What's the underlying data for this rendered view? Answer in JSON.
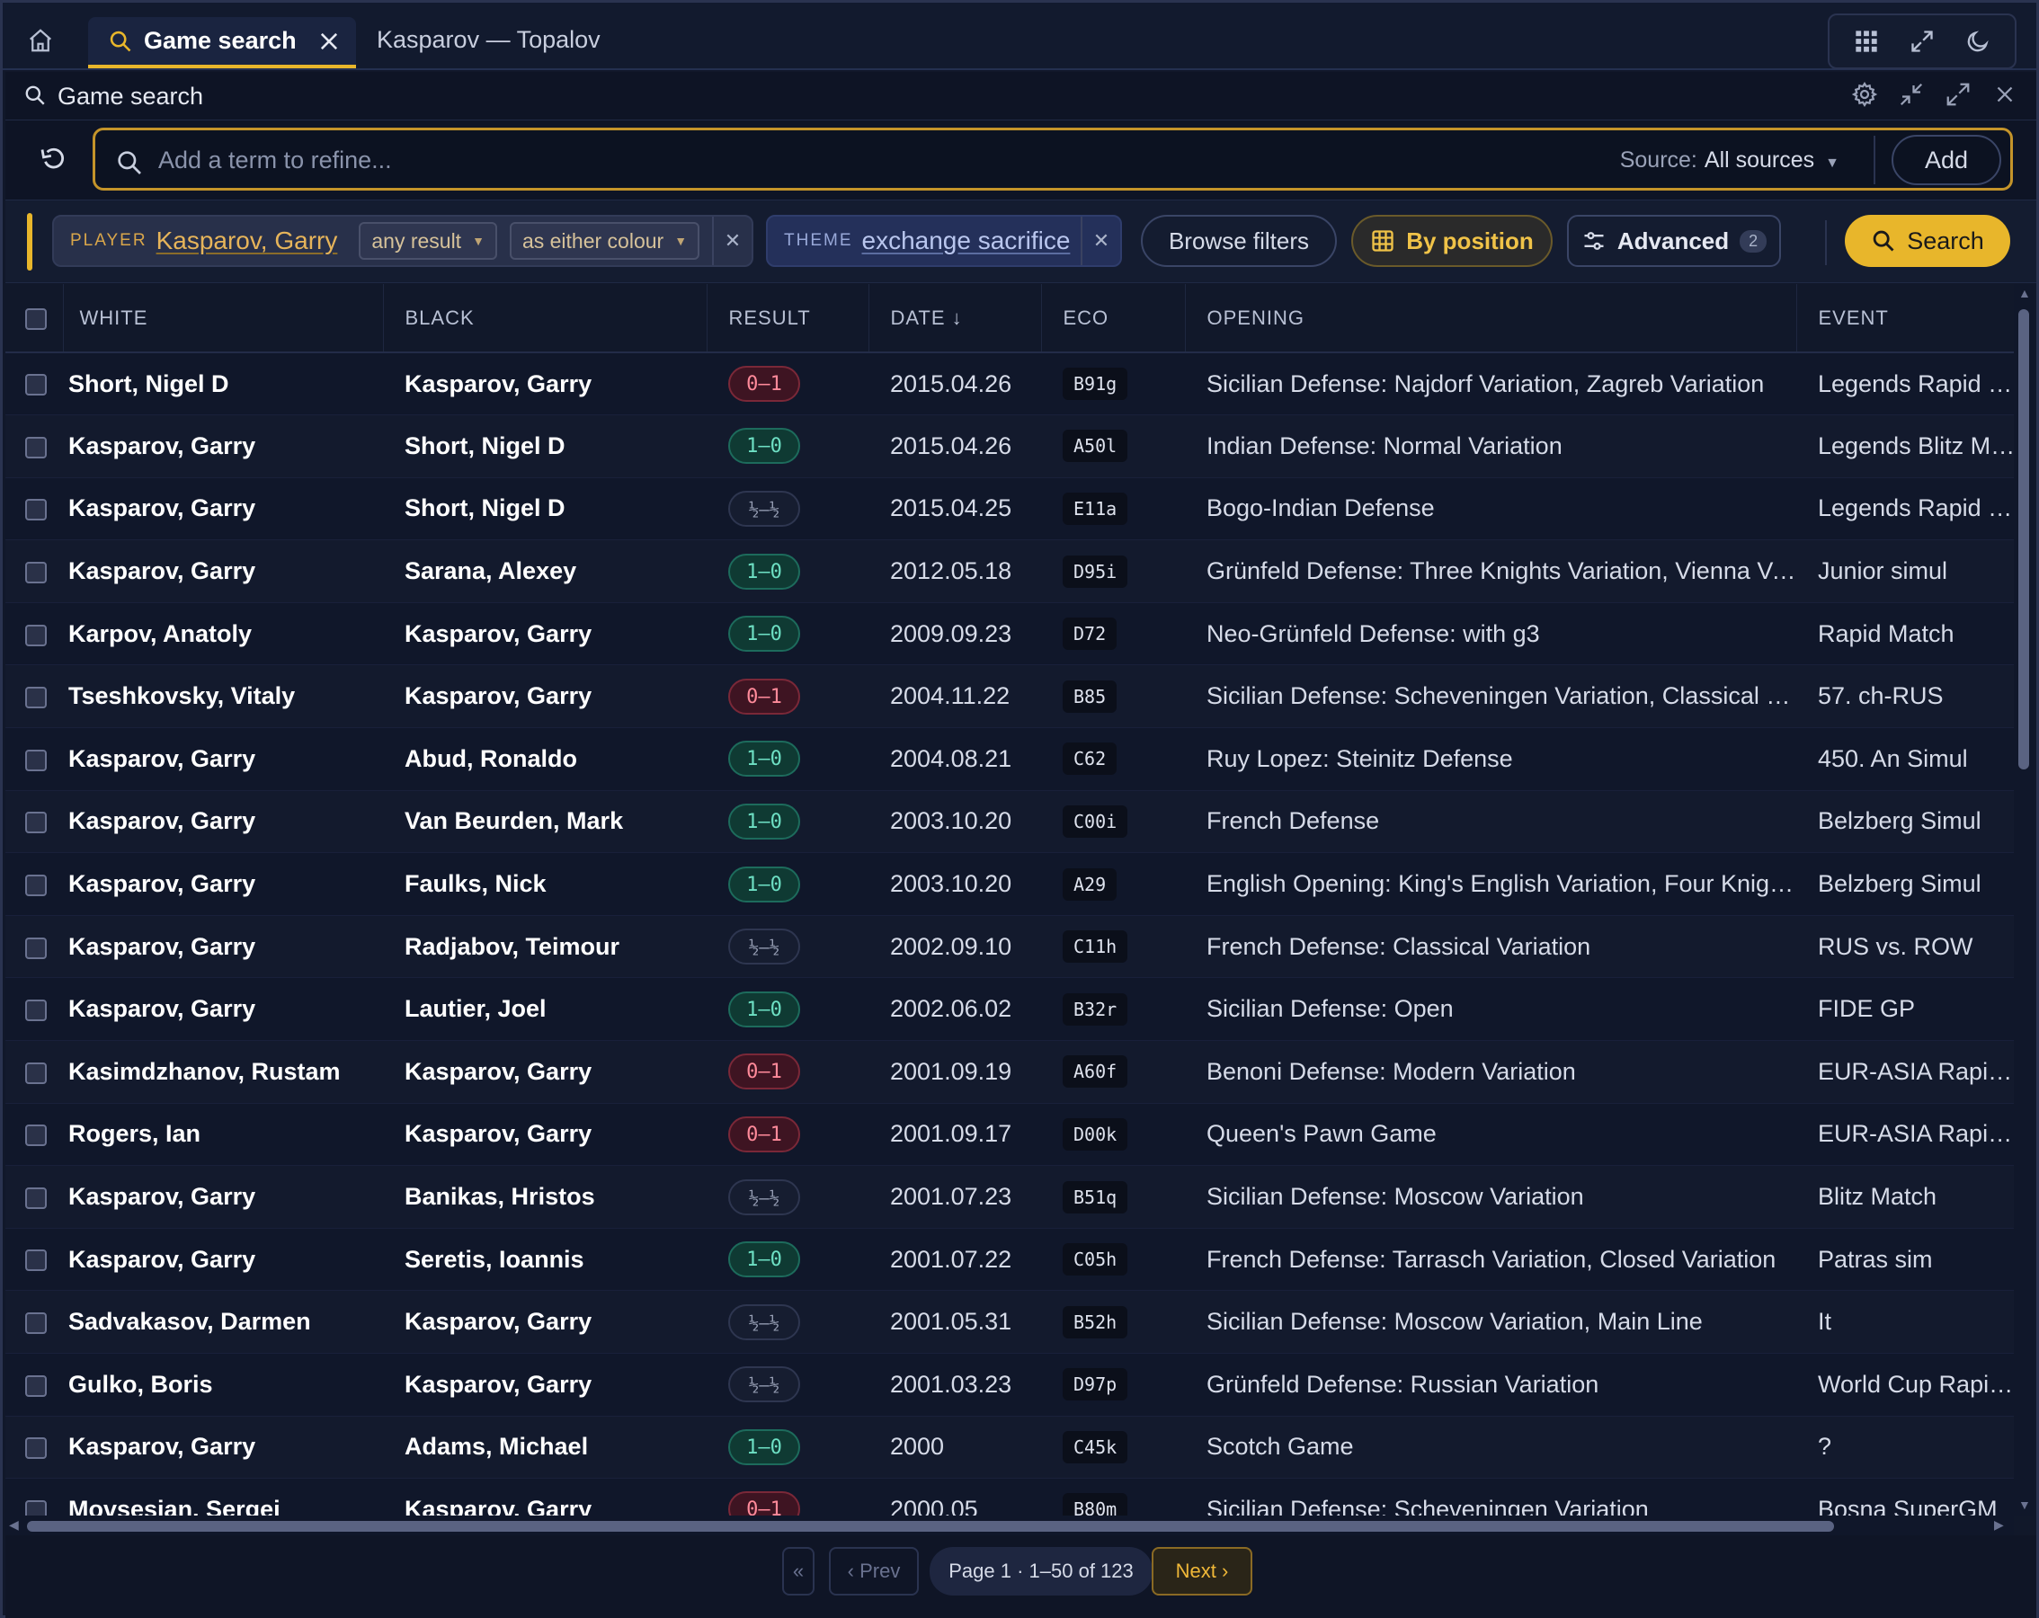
{
  "tabs": [
    {
      "label": "Game search",
      "active": true
    },
    {
      "label": "Kasparov — Topalov",
      "active": false
    }
  ],
  "panel": {
    "title": "Game search"
  },
  "search": {
    "placeholder": "Add a term to refine...",
    "source_label": "Source:",
    "source_value": "All sources",
    "add_label": "Add"
  },
  "filters": {
    "player": {
      "key": "PLAYER",
      "value": "Kasparov, Garry",
      "result": "any result",
      "colour": "as either colour"
    },
    "theme": {
      "key": "THEME",
      "value": "exchange sacrifice"
    },
    "browse_label": "Browse filters",
    "by_position_label": "By position",
    "advanced_label": "Advanced",
    "advanced_count": "2",
    "search_label": "Search"
  },
  "table": {
    "columns": [
      "WHITE",
      "BLACK",
      "RESULT",
      "DATE ↓",
      "ECO",
      "OPENING",
      "EVENT"
    ],
    "rows": [
      {
        "white": "Short, Nigel D",
        "black": "Kasparov, Garry",
        "result": "0–1",
        "date": "2015.04.26",
        "eco": "B91g",
        "opening": "Sicilian Defense: Najdorf Variation, Zagreb Variation",
        "event": "Legends Rapid Matc"
      },
      {
        "white": "Kasparov, Garry",
        "black": "Short, Nigel D",
        "result": "1–0",
        "date": "2015.04.26",
        "eco": "A50l",
        "opening": "Indian Defense: Normal Variation",
        "event": "Legends Blitz Match"
      },
      {
        "white": "Kasparov, Garry",
        "black": "Short, Nigel D",
        "result": "½–½",
        "date": "2015.04.25",
        "eco": "E11a",
        "opening": "Bogo-Indian Defense",
        "event": "Legends Rapid Matc"
      },
      {
        "white": "Kasparov, Garry",
        "black": "Sarana, Alexey",
        "result": "1–0",
        "date": "2012.05.18",
        "eco": "D95i",
        "opening": "Grünfeld Defense: Three Knights Variation, Vienna Varia...",
        "event": "Junior simul"
      },
      {
        "white": "Karpov, Anatoly",
        "black": "Kasparov, Garry",
        "result": "1–0",
        "date": "2009.09.23",
        "eco": "D72",
        "opening": "Neo-Grünfeld Defense: with g3",
        "event": "Rapid Match"
      },
      {
        "white": "Tseshkovsky, Vitaly",
        "black": "Kasparov, Garry",
        "result": "0–1",
        "date": "2004.11.22",
        "eco": "B85",
        "opening": "Sicilian Defense: Scheveningen Variation, Classical Varia...",
        "event": "57. ch-RUS"
      },
      {
        "white": "Kasparov, Garry",
        "black": "Abud, Ronaldo",
        "result": "1–0",
        "date": "2004.08.21",
        "eco": "C62",
        "opening": "Ruy Lopez: Steinitz Defense",
        "event": "450. An Simul"
      },
      {
        "white": "Kasparov, Garry",
        "black": "Van Beurden, Mark",
        "result": "1–0",
        "date": "2003.10.20",
        "eco": "C00i",
        "opening": "French Defense",
        "event": "Belzberg Simul"
      },
      {
        "white": "Kasparov, Garry",
        "black": "Faulks, Nick",
        "result": "1–0",
        "date": "2003.10.20",
        "eco": "A29",
        "opening": "English Opening: King's English Variation, Four Knights ...",
        "event": "Belzberg Simul"
      },
      {
        "white": "Kasparov, Garry",
        "black": "Radjabov, Teimour",
        "result": "½–½",
        "date": "2002.09.10",
        "eco": "C11h",
        "opening": "French Defense: Classical Variation",
        "event": "RUS vs. ROW"
      },
      {
        "white": "Kasparov, Garry",
        "black": "Lautier, Joel",
        "result": "1–0",
        "date": "2002.06.02",
        "eco": "B32r",
        "opening": "Sicilian Defense: Open",
        "event": "FIDE GP"
      },
      {
        "white": "Kasimdzhanov, Rustam",
        "black": "Kasparov, Garry",
        "result": "0–1",
        "date": "2001.09.19",
        "eco": "A60f",
        "opening": "Benoni Defense: Modern Variation",
        "event": "EUR-ASIA Rapid Mat"
      },
      {
        "white": "Rogers, Ian",
        "black": "Kasparov, Garry",
        "result": "0–1",
        "date": "2001.09.17",
        "eco": "D00k",
        "opening": "Queen's Pawn Game",
        "event": "EUR-ASIA Rapid Mat"
      },
      {
        "white": "Kasparov, Garry",
        "black": "Banikas, Hristos",
        "result": "½–½",
        "date": "2001.07.23",
        "eco": "B51q",
        "opening": "Sicilian Defense: Moscow Variation",
        "event": "Blitz Match"
      },
      {
        "white": "Kasparov, Garry",
        "black": "Seretis, Ioannis",
        "result": "1–0",
        "date": "2001.07.22",
        "eco": "C05h",
        "opening": "French Defense: Tarrasch Variation, Closed Variation",
        "event": "Patras sim"
      },
      {
        "white": "Sadvakasov, Darmen",
        "black": "Kasparov, Garry",
        "result": "½–½",
        "date": "2001.05.31",
        "eco": "B52h",
        "opening": "Sicilian Defense: Moscow Variation, Main Line",
        "event": "It"
      },
      {
        "white": "Gulko, Boris",
        "black": "Kasparov, Garry",
        "result": "½–½",
        "date": "2001.03.23",
        "eco": "D97p",
        "opening": "Grünfeld Defense: Russian Variation",
        "event": "World Cup Rapid Ch"
      },
      {
        "white": "Kasparov, Garry",
        "black": "Adams, Michael",
        "result": "1–0",
        "date": "2000",
        "eco": "C45k",
        "opening": "Scotch Game",
        "event": "?"
      },
      {
        "white": "Movsesian, Sergei",
        "black": "Kasparov, Garry",
        "result": "0–1",
        "date": "2000.05",
        "eco": "B80m",
        "opening": "Sicilian Defense: Scheveningen Variation",
        "event": "Bosna SuperGM"
      }
    ]
  },
  "pager": {
    "first_label": "«",
    "prev_label": "‹ Prev",
    "info": "Page 1 · 1–50 of 123",
    "next_label": "Next ›"
  },
  "colors": {
    "accent": "#e8b62b",
    "win": "#6ee0c4",
    "loss": "#ff8a9a",
    "background": "#11182a"
  }
}
